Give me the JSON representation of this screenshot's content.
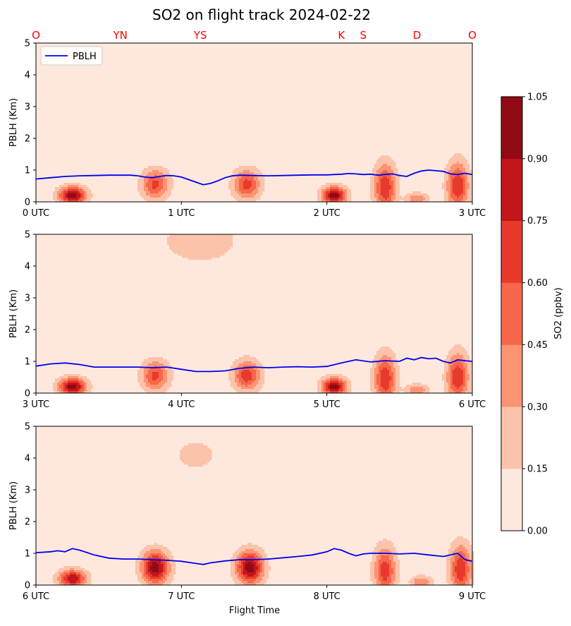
{
  "chart_data": {
    "type": "heatmap",
    "title": "SO2 on flight track 2024-02-22",
    "xlabel": "Flight Time",
    "ylabel": "PBLH (Km)",
    "legend": {
      "entries": [
        "PBLH"
      ],
      "placement": "upper-left"
    },
    "pblh_color": "#0000ee",
    "location_labels": [
      {
        "label": "O",
        "x": 0
      },
      {
        "label": "YN",
        "x": 0.58
      },
      {
        "label": "YS",
        "x": 1.13
      },
      {
        "label": "K",
        "x": 2.1
      },
      {
        "label": "S",
        "x": 2.25
      },
      {
        "label": "D",
        "x": 2.62
      },
      {
        "label": "O",
        "x": 3.0
      }
    ],
    "location_color": "#ff0000",
    "colorbar": {
      "label": "SO2 (ppbv)",
      "levels": [
        "0.00",
        "0.15",
        "0.30",
        "0.45",
        "0.60",
        "0.75",
        "0.90",
        "1.05"
      ],
      "colors": [
        "#fee8de",
        "#fcc3ab",
        "#fc9474",
        "#f86649",
        "#e83a2c",
        "#c3161b",
        "#920b14"
      ]
    },
    "panels": [
      {
        "xlim": [
          0,
          3
        ],
        "ylim": [
          0,
          5
        ],
        "xticks": [
          "0 UTC",
          "1 UTC",
          "2 UTC",
          "3 UTC"
        ],
        "yticks": [
          "0",
          "1",
          "2",
          "3",
          "4",
          "5"
        ],
        "pblh": {
          "x": [
            0,
            0.1,
            0.2,
            0.3,
            0.4,
            0.5,
            0.6,
            0.65,
            0.7,
            0.75,
            0.8,
            0.85,
            0.9,
            0.95,
            1.0,
            1.05,
            1.1,
            1.15,
            1.2,
            1.25,
            1.3,
            1.35,
            1.4,
            1.5,
            1.6,
            1.7,
            1.8,
            1.9,
            2.0,
            2.1,
            2.15,
            2.2,
            2.25,
            2.3,
            2.35,
            2.4,
            2.45,
            2.5,
            2.55,
            2.6,
            2.65,
            2.7,
            2.75,
            2.8,
            2.85,
            2.9,
            2.95,
            3.0
          ],
          "y": [
            0.72,
            0.76,
            0.8,
            0.82,
            0.83,
            0.84,
            0.84,
            0.84,
            0.82,
            0.78,
            0.76,
            0.8,
            0.83,
            0.82,
            0.78,
            0.7,
            0.62,
            0.54,
            0.58,
            0.66,
            0.76,
            0.82,
            0.84,
            0.83,
            0.82,
            0.83,
            0.84,
            0.85,
            0.85,
            0.87,
            0.89,
            0.88,
            0.86,
            0.87,
            0.84,
            0.86,
            0.88,
            0.83,
            0.8,
            0.9,
            0.97,
            1.0,
            0.98,
            0.96,
            0.88,
            0.86,
            0.9,
            0.86
          ]
        },
        "blobs": [
          {
            "x": 0.25,
            "y": 0.2,
            "rx": 0.1,
            "ry": 0.3,
            "peak": 0.95
          },
          {
            "x": 0.82,
            "y": 0.55,
            "rx": 0.1,
            "ry": 0.5,
            "peak": 0.6
          },
          {
            "x": 1.45,
            "y": 0.55,
            "rx": 0.1,
            "ry": 0.5,
            "peak": 0.62
          },
          {
            "x": 2.05,
            "y": 0.2,
            "rx": 0.09,
            "ry": 0.3,
            "peak": 0.95
          },
          {
            "x": 2.4,
            "y": 0.45,
            "rx": 0.08,
            "ry": 0.8,
            "peak": 0.7
          },
          {
            "x": 2.62,
            "y": 0.1,
            "rx": 0.08,
            "ry": 0.2,
            "peak": 0.4
          },
          {
            "x": 2.9,
            "y": 0.5,
            "rx": 0.08,
            "ry": 0.8,
            "peak": 0.7
          }
        ]
      },
      {
        "xlim": [
          3,
          6
        ],
        "ylim": [
          0,
          5
        ],
        "xticks": [
          "3 UTC",
          "4 UTC",
          "5 UTC",
          "6 UTC"
        ],
        "yticks": [
          "0",
          "1",
          "2",
          "3",
          "4",
          "5"
        ],
        "pblh": {
          "x": [
            3,
            3.1,
            3.2,
            3.3,
            3.4,
            3.5,
            3.6,
            3.7,
            3.8,
            3.9,
            4.0,
            4.1,
            4.2,
            4.3,
            4.4,
            4.5,
            4.6,
            4.7,
            4.8,
            4.9,
            5.0,
            5.1,
            5.2,
            5.3,
            5.4,
            5.5,
            5.55,
            5.6,
            5.65,
            5.7,
            5.75,
            5.8,
            5.85,
            5.9,
            5.95,
            6.0
          ],
          "y": [
            0.85,
            0.92,
            0.95,
            0.9,
            0.82,
            0.82,
            0.82,
            0.82,
            0.8,
            0.82,
            0.75,
            0.68,
            0.68,
            0.7,
            0.78,
            0.82,
            0.8,
            0.82,
            0.83,
            0.82,
            0.84,
            0.95,
            1.05,
            0.98,
            1.02,
            1.0,
            1.1,
            1.05,
            1.12,
            1.08,
            1.1,
            1.0,
            0.95,
            1.05,
            1.02,
            1.0
          ]
        },
        "blobs": [
          {
            "x": 3.25,
            "y": 0.2,
            "rx": 0.1,
            "ry": 0.3,
            "peak": 0.95
          },
          {
            "x": 3.82,
            "y": 0.55,
            "rx": 0.1,
            "ry": 0.5,
            "peak": 0.6
          },
          {
            "x": 4.45,
            "y": 0.55,
            "rx": 0.1,
            "ry": 0.5,
            "peak": 0.65
          },
          {
            "x": 5.05,
            "y": 0.2,
            "rx": 0.09,
            "ry": 0.3,
            "peak": 0.95
          },
          {
            "x": 5.4,
            "y": 0.45,
            "rx": 0.08,
            "ry": 0.8,
            "peak": 0.7
          },
          {
            "x": 5.62,
            "y": 0.1,
            "rx": 0.08,
            "ry": 0.2,
            "peak": 0.4
          },
          {
            "x": 5.9,
            "y": 0.5,
            "rx": 0.08,
            "ry": 0.8,
            "peak": 0.7
          },
          {
            "x": 4.13,
            "y": 4.8,
            "rx": 0.3,
            "ry": 0.8,
            "peak": 0.2
          }
        ]
      },
      {
        "xlim": [
          6,
          9
        ],
        "ylim": [
          0,
          5
        ],
        "xticks": [
          "6 UTC",
          "7 UTC",
          "8 UTC",
          "9 UTC"
        ],
        "yticks": [
          "0",
          "1",
          "2",
          "3",
          "4",
          "5"
        ],
        "pblh": {
          "x": [
            6,
            6.1,
            6.15,
            6.2,
            6.25,
            6.3,
            6.4,
            6.5,
            6.6,
            6.7,
            6.8,
            6.9,
            7.0,
            7.1,
            7.15,
            7.2,
            7.3,
            7.4,
            7.5,
            7.6,
            7.7,
            7.8,
            7.9,
            8.0,
            8.05,
            8.1,
            8.15,
            8.2,
            8.25,
            8.3,
            8.4,
            8.5,
            8.6,
            8.7,
            8.8,
            8.9,
            8.95,
            9.0
          ],
          "y": [
            1.02,
            1.05,
            1.08,
            1.05,
            1.15,
            1.1,
            0.95,
            0.85,
            0.82,
            0.82,
            0.8,
            0.78,
            0.75,
            0.68,
            0.65,
            0.7,
            0.76,
            0.8,
            0.8,
            0.82,
            0.86,
            0.9,
            0.95,
            1.05,
            1.15,
            1.1,
            1.0,
            0.92,
            0.98,
            1.0,
            1.0,
            0.98,
            1.0,
            0.95,
            0.9,
            1.0,
            0.8,
            0.75
          ]
        },
        "blobs": [
          {
            "x": 6.25,
            "y": 0.2,
            "rx": 0.1,
            "ry": 0.3,
            "peak": 0.85
          },
          {
            "x": 6.82,
            "y": 0.55,
            "rx": 0.1,
            "ry": 0.55,
            "peak": 0.95
          },
          {
            "x": 7.47,
            "y": 0.55,
            "rx": 0.1,
            "ry": 0.55,
            "peak": 0.95
          },
          {
            "x": 8.4,
            "y": 0.45,
            "rx": 0.08,
            "ry": 0.8,
            "peak": 0.65
          },
          {
            "x": 8.65,
            "y": 0.1,
            "rx": 0.08,
            "ry": 0.2,
            "peak": 0.4
          },
          {
            "x": 8.92,
            "y": 0.5,
            "rx": 0.08,
            "ry": 0.8,
            "peak": 0.7
          },
          {
            "x": 7.1,
            "y": 4.1,
            "rx": 0.15,
            "ry": 0.5,
            "peak": 0.2
          }
        ]
      }
    ]
  }
}
